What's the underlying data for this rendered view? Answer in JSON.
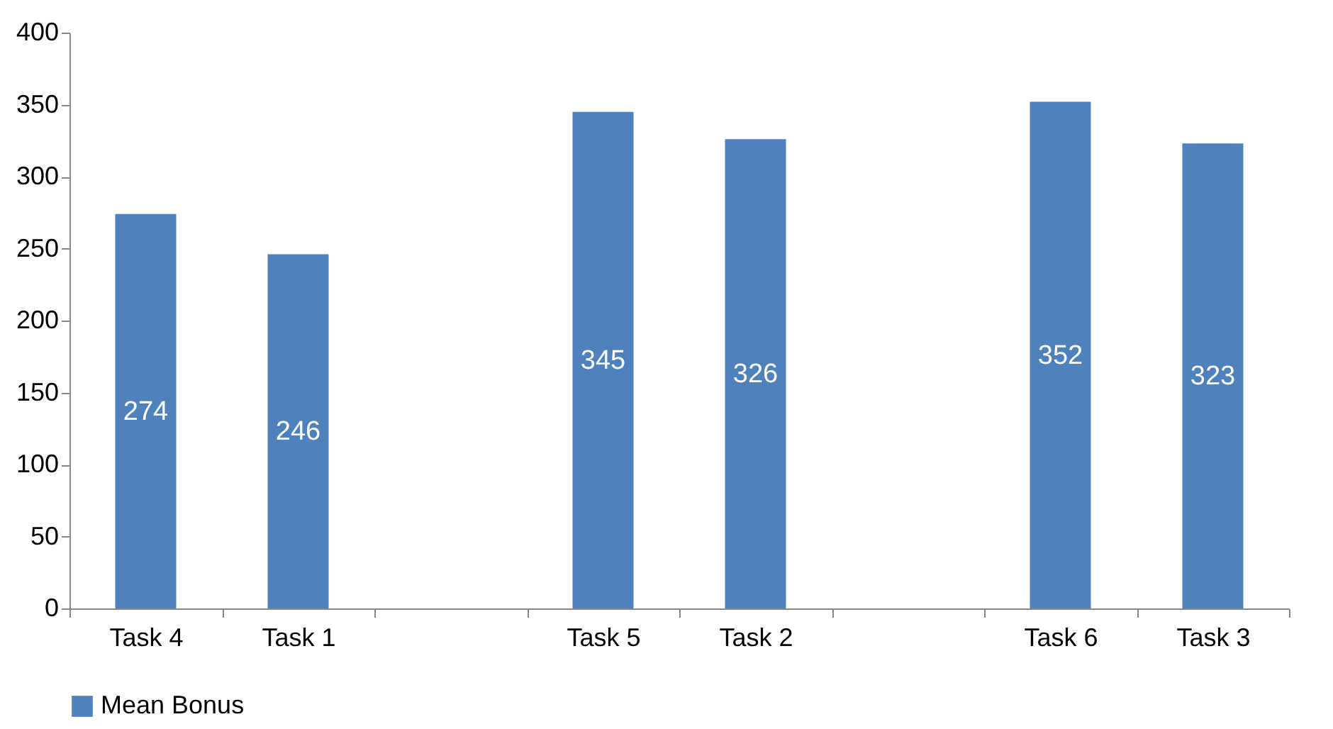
{
  "chart_data": {
    "type": "bar",
    "categories": [
      "Task 4",
      "Task 1",
      null,
      "Task 5",
      "Task 2",
      null,
      "Task 6",
      "Task 3"
    ],
    "series": [
      {
        "name": "Mean Bonus",
        "color": "#4f81bd",
        "values": [
          274,
          246,
          null,
          345,
          326,
          null,
          352,
          323
        ]
      }
    ],
    "ylim": [
      0,
      400
    ],
    "yticks": [
      0,
      50,
      100,
      150,
      200,
      250,
      300,
      350,
      400
    ],
    "grid": false,
    "legend": "bottom",
    "data_labels": true
  }
}
